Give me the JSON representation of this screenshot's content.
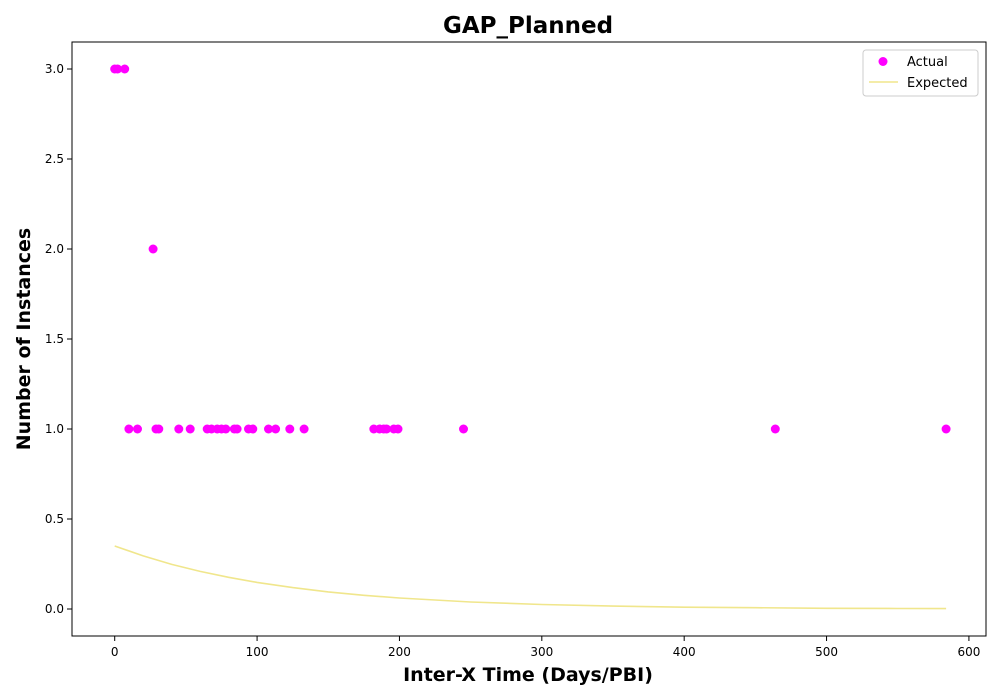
{
  "chart_data": {
    "type": "scatter",
    "title": "GAP_Planned",
    "xlabel": "Inter-X Time (Days/PBI)",
    "ylabel": "Number of Instances",
    "xlim": [
      -30,
      612
    ],
    "ylim": [
      -0.15,
      3.15
    ],
    "x_ticks": [
      0,
      100,
      200,
      300,
      400,
      500,
      600
    ],
    "y_ticks": [
      0.0,
      0.5,
      1.0,
      1.5,
      2.0,
      2.5,
      3.0
    ],
    "x_tick_labels": [
      "0",
      "100",
      "200",
      "300",
      "400",
      "500",
      "600"
    ],
    "y_tick_labels": [
      "0.0",
      "0.5",
      "1.0",
      "1.5",
      "2.0",
      "2.5",
      "3.0"
    ],
    "grid": false,
    "legend": {
      "placement": "top-right",
      "entries": [
        "Actual",
        "Expected"
      ]
    },
    "series": [
      {
        "name": "Actual",
        "kind": "scatter",
        "color": "#ff00ff",
        "x": [
          0,
          2,
          7,
          27,
          10,
          16,
          29,
          31,
          45,
          53,
          65,
          68,
          72,
          75,
          78,
          84,
          86,
          94,
          97,
          108,
          113,
          123,
          133,
          182,
          186,
          189,
          191,
          196,
          199,
          245,
          464,
          584
        ],
        "y": [
          3,
          3,
          3,
          2,
          1,
          1,
          1,
          1,
          1,
          1,
          1,
          1,
          1,
          1,
          1,
          1,
          1,
          1,
          1,
          1,
          1,
          1,
          1,
          1,
          1,
          1,
          1,
          1,
          1,
          1,
          1,
          1
        ]
      },
      {
        "name": "Expected",
        "kind": "line",
        "color": "#f0e68c",
        "x": [
          0,
          20,
          40,
          60,
          80,
          100,
          125,
          150,
          175,
          200,
          250,
          300,
          350,
          400,
          450,
          500,
          550,
          584
        ],
        "y": [
          0.35,
          0.295,
          0.248,
          0.209,
          0.176,
          0.148,
          0.119,
          0.095,
          0.076,
          0.061,
          0.039,
          0.025,
          0.016,
          0.01,
          0.007,
          0.004,
          0.003,
          0.002
        ]
      }
    ]
  }
}
